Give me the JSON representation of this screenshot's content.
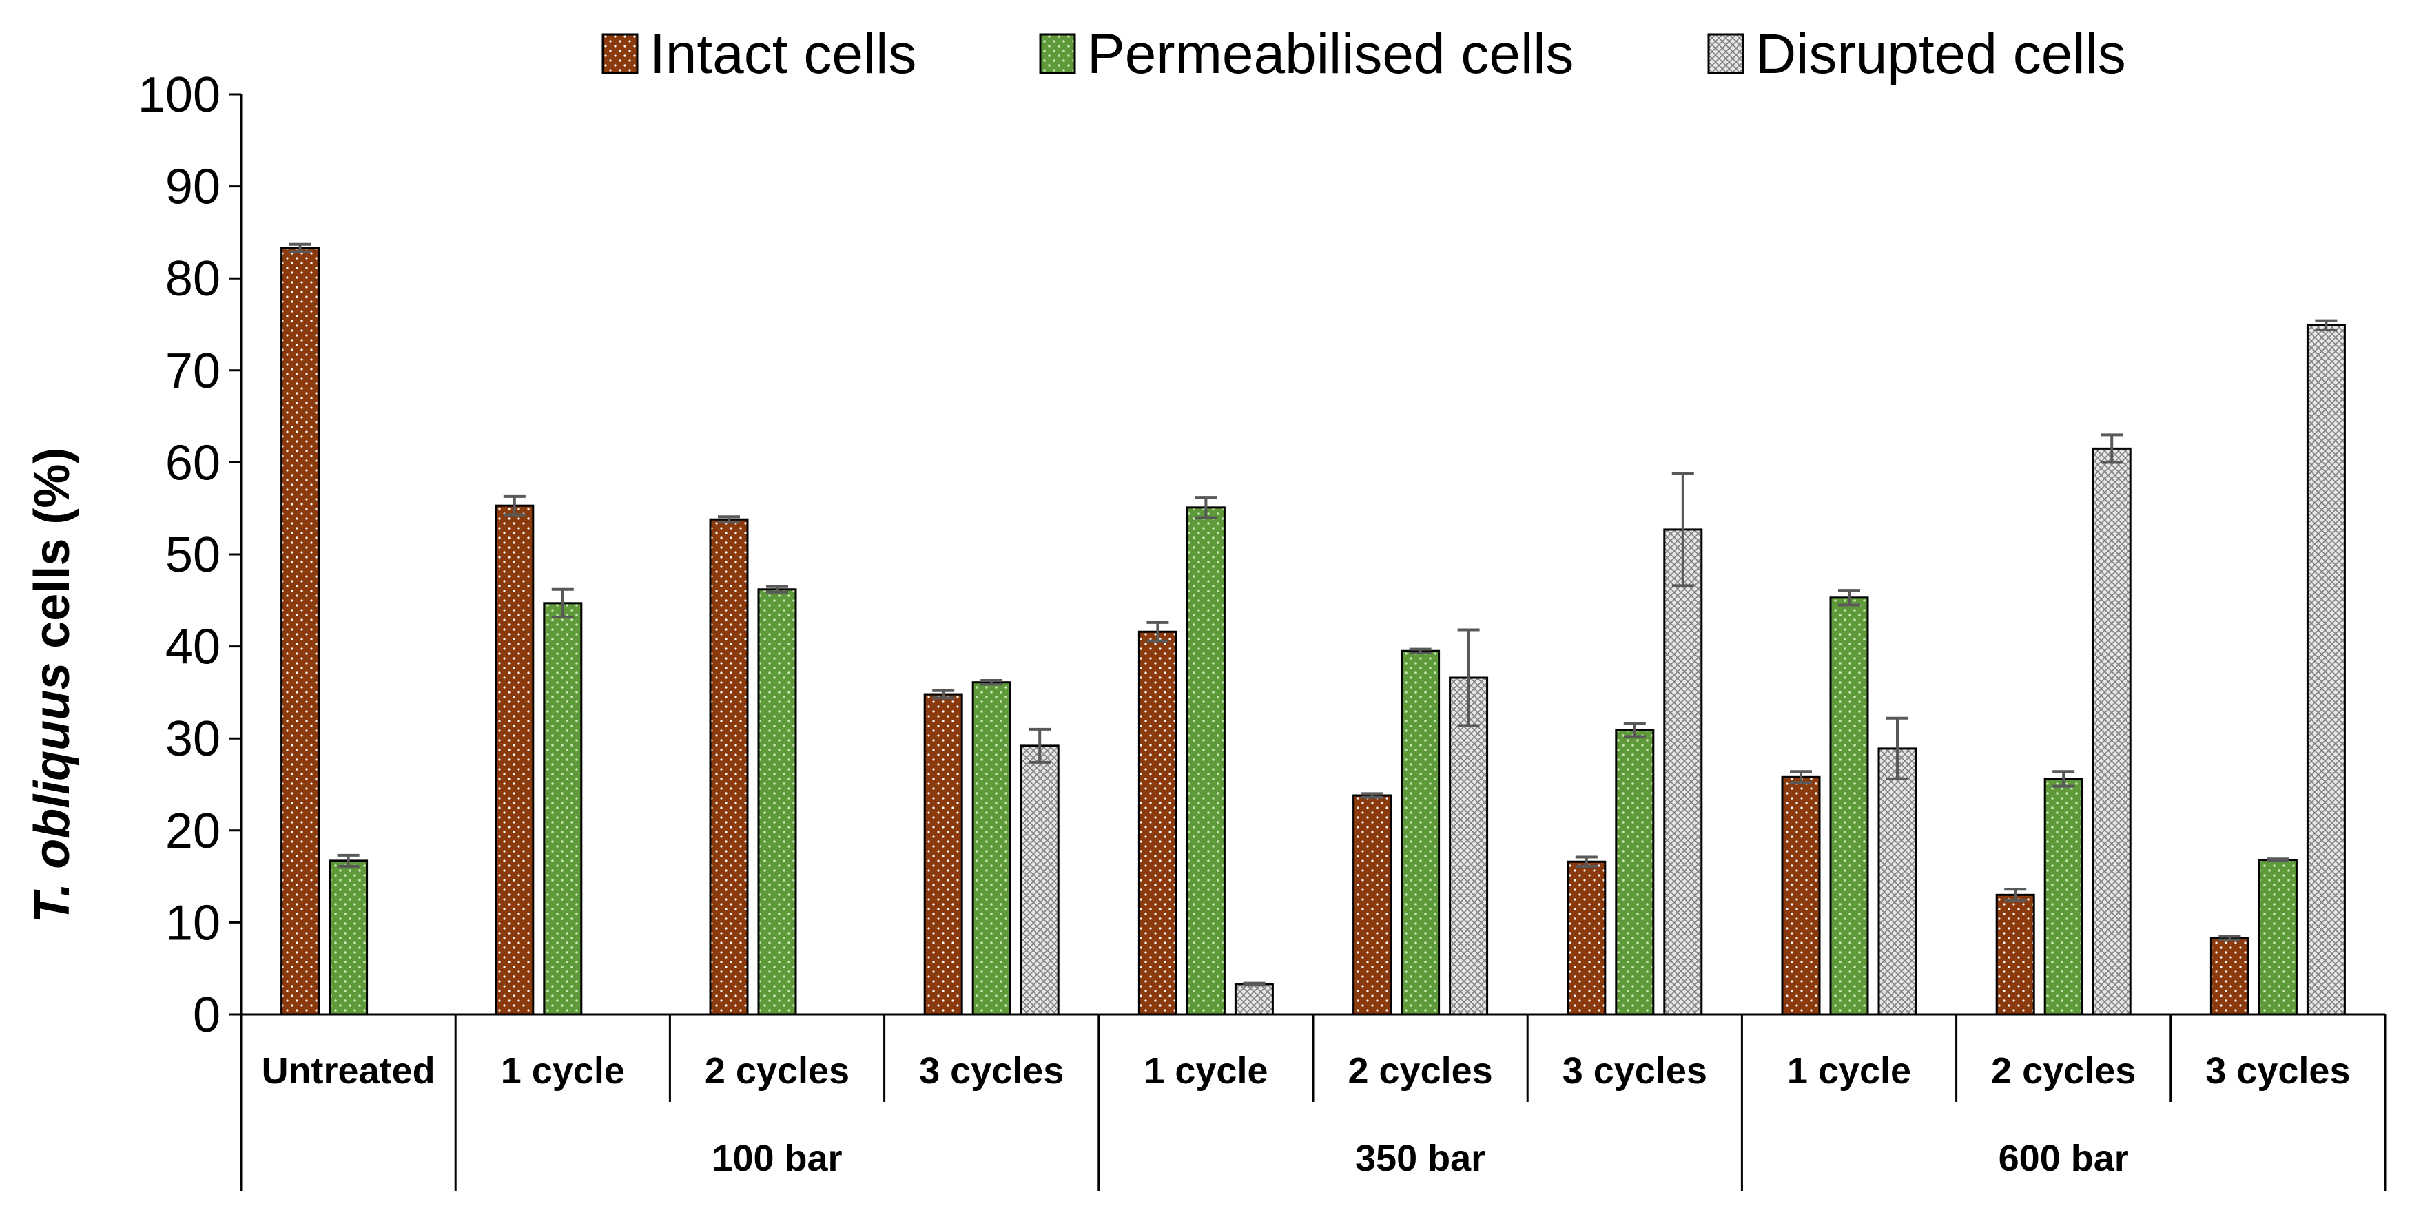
{
  "chart_data": {
    "type": "bar",
    "title": "",
    "xlabel": "",
    "ylabel_italic": "T. obliquus",
    "ylabel_rest": " cells (%)",
    "ylim": [
      0,
      100
    ],
    "yticks": [
      0,
      10,
      20,
      30,
      40,
      50,
      60,
      70,
      80,
      90,
      100
    ],
    "legend_position": "top",
    "categories": [
      "Untreated",
      "1 cycle",
      "2 cycles",
      "3 cycles",
      "1 cycle",
      "2 cycles",
      "3 cycles",
      "1 cycle",
      "2 cycles",
      "3 cycles"
    ],
    "groups": [
      {
        "label": "",
        "span": 1
      },
      {
        "label": "100 bar",
        "span": 3
      },
      {
        "label": "350 bar",
        "span": 3
      },
      {
        "label": "600 bar",
        "span": 3
      }
    ],
    "series": [
      {
        "name": "Intact cells",
        "color": "#8B3A0E",
        "pattern": "dots-white",
        "values": [
          83.3,
          55.3,
          53.8,
          34.8,
          41.6,
          23.8,
          16.6,
          25.8,
          13.0,
          8.3
        ],
        "errors": [
          0.4,
          1.0,
          0.3,
          0.4,
          1.0,
          0.2,
          0.5,
          0.6,
          0.6,
          0.2
        ]
      },
      {
        "name": "Permeabilised cells",
        "color": "#5E9A3A",
        "pattern": "dots-light",
        "values": [
          16.7,
          44.7,
          46.2,
          36.1,
          55.1,
          39.5,
          30.9,
          45.3,
          25.6,
          16.8
        ],
        "errors": [
          0.6,
          1.5,
          0.3,
          0.2,
          1.1,
          0.2,
          0.7,
          0.8,
          0.8,
          0.1
        ]
      },
      {
        "name": "Disrupted cells",
        "color": "#D9D9D9",
        "pattern": "crosshatch",
        "values": [
          null,
          null,
          null,
          29.2,
          3.3,
          36.6,
          52.7,
          28.9,
          61.5,
          74.9
        ],
        "errors": [
          null,
          null,
          null,
          1.8,
          0.1,
          5.2,
          6.1,
          3.3,
          1.5,
          0.5
        ]
      }
    ]
  }
}
